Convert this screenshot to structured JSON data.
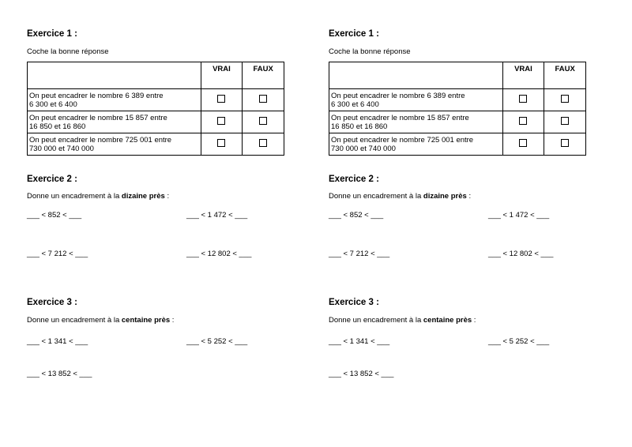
{
  "ex1": {
    "title": "Exercice 1 :",
    "instruction": "Coche la bonne réponse",
    "headers": [
      "VRAI",
      "FAUX"
    ],
    "rows": [
      {
        "l1": "On peut encadrer le nombre 6 389 entre",
        "l2": "6 300 et 6 400"
      },
      {
        "l1": "On peut encadrer le nombre 15 857 entre",
        "l2": "16 850 et 16 860"
      },
      {
        "l1": "On peut encadrer le nombre 725 001 entre",
        "l2": "730 000 et 740 000"
      }
    ]
  },
  "ex2": {
    "title": "Exercice 2 :",
    "pre": "Donne un encadrement à la ",
    "bold": "dizaine près",
    "post": " :",
    "items": [
      "___ < 852 < ___",
      "___ < 1 472 < ___",
      "___ < 7 212 < ___",
      "___ < 12 802 < ___"
    ]
  },
  "ex3": {
    "title": "Exercice 3 :",
    "pre": "Donne un encadrement à la ",
    "bold": "centaine près",
    "post": " :",
    "items": [
      "___ < 1 341 < ___",
      "___ < 5 252 < ___",
      "___ < 13 852 < ___"
    ]
  }
}
